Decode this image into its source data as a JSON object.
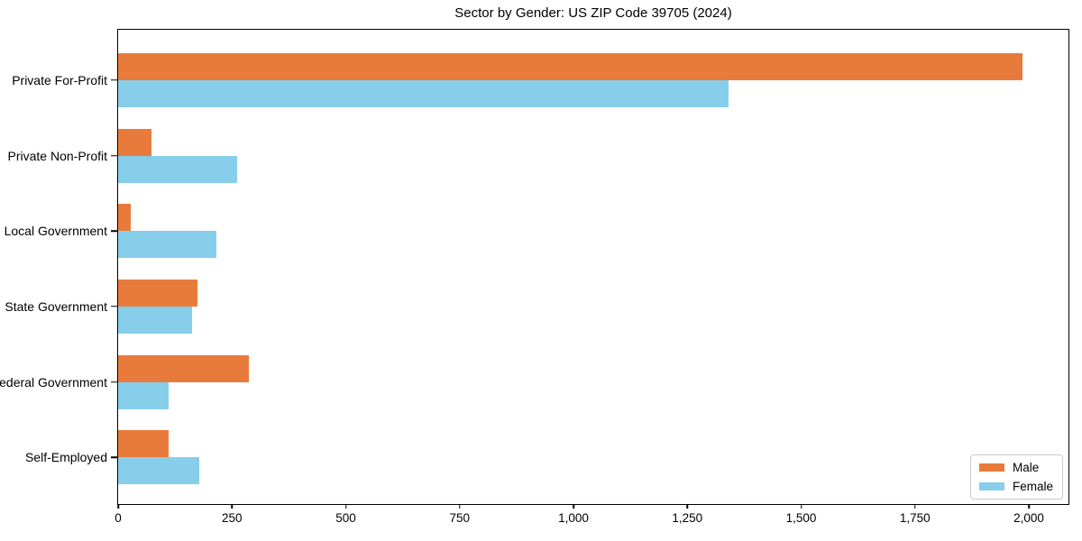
{
  "chart_data": {
    "type": "bar",
    "orientation": "horizontal",
    "title": "Sector by Gender: US ZIP Code 39705 (2024)",
    "categories": [
      "Private For-Profit",
      "Private Non-Profit",
      "Local Government",
      "State Government",
      "Federal Government",
      "Self-Employed"
    ],
    "series": [
      {
        "name": "Male",
        "color": "#E87B3C",
        "values": [
          1986,
          74,
          27,
          174,
          288,
          111
        ]
      },
      {
        "name": "Female",
        "color": "#87CEEB",
        "values": [
          1341,
          262,
          216,
          162,
          111,
          179
        ]
      }
    ],
    "xlim": [
      0,
      2087
    ],
    "x_ticks": [
      0,
      250,
      500,
      750,
      1000,
      1250,
      1500,
      1750,
      2000
    ],
    "x_tick_labels": [
      "0",
      "250",
      "500",
      "750",
      "1,000",
      "1,250",
      "1,500",
      "1,750",
      "2,000"
    ],
    "legend": {
      "position": "lower right",
      "entries": [
        "Male",
        "Female"
      ]
    },
    "grid": false,
    "background_color": "#ffffff",
    "spine_color": "#000000"
  }
}
